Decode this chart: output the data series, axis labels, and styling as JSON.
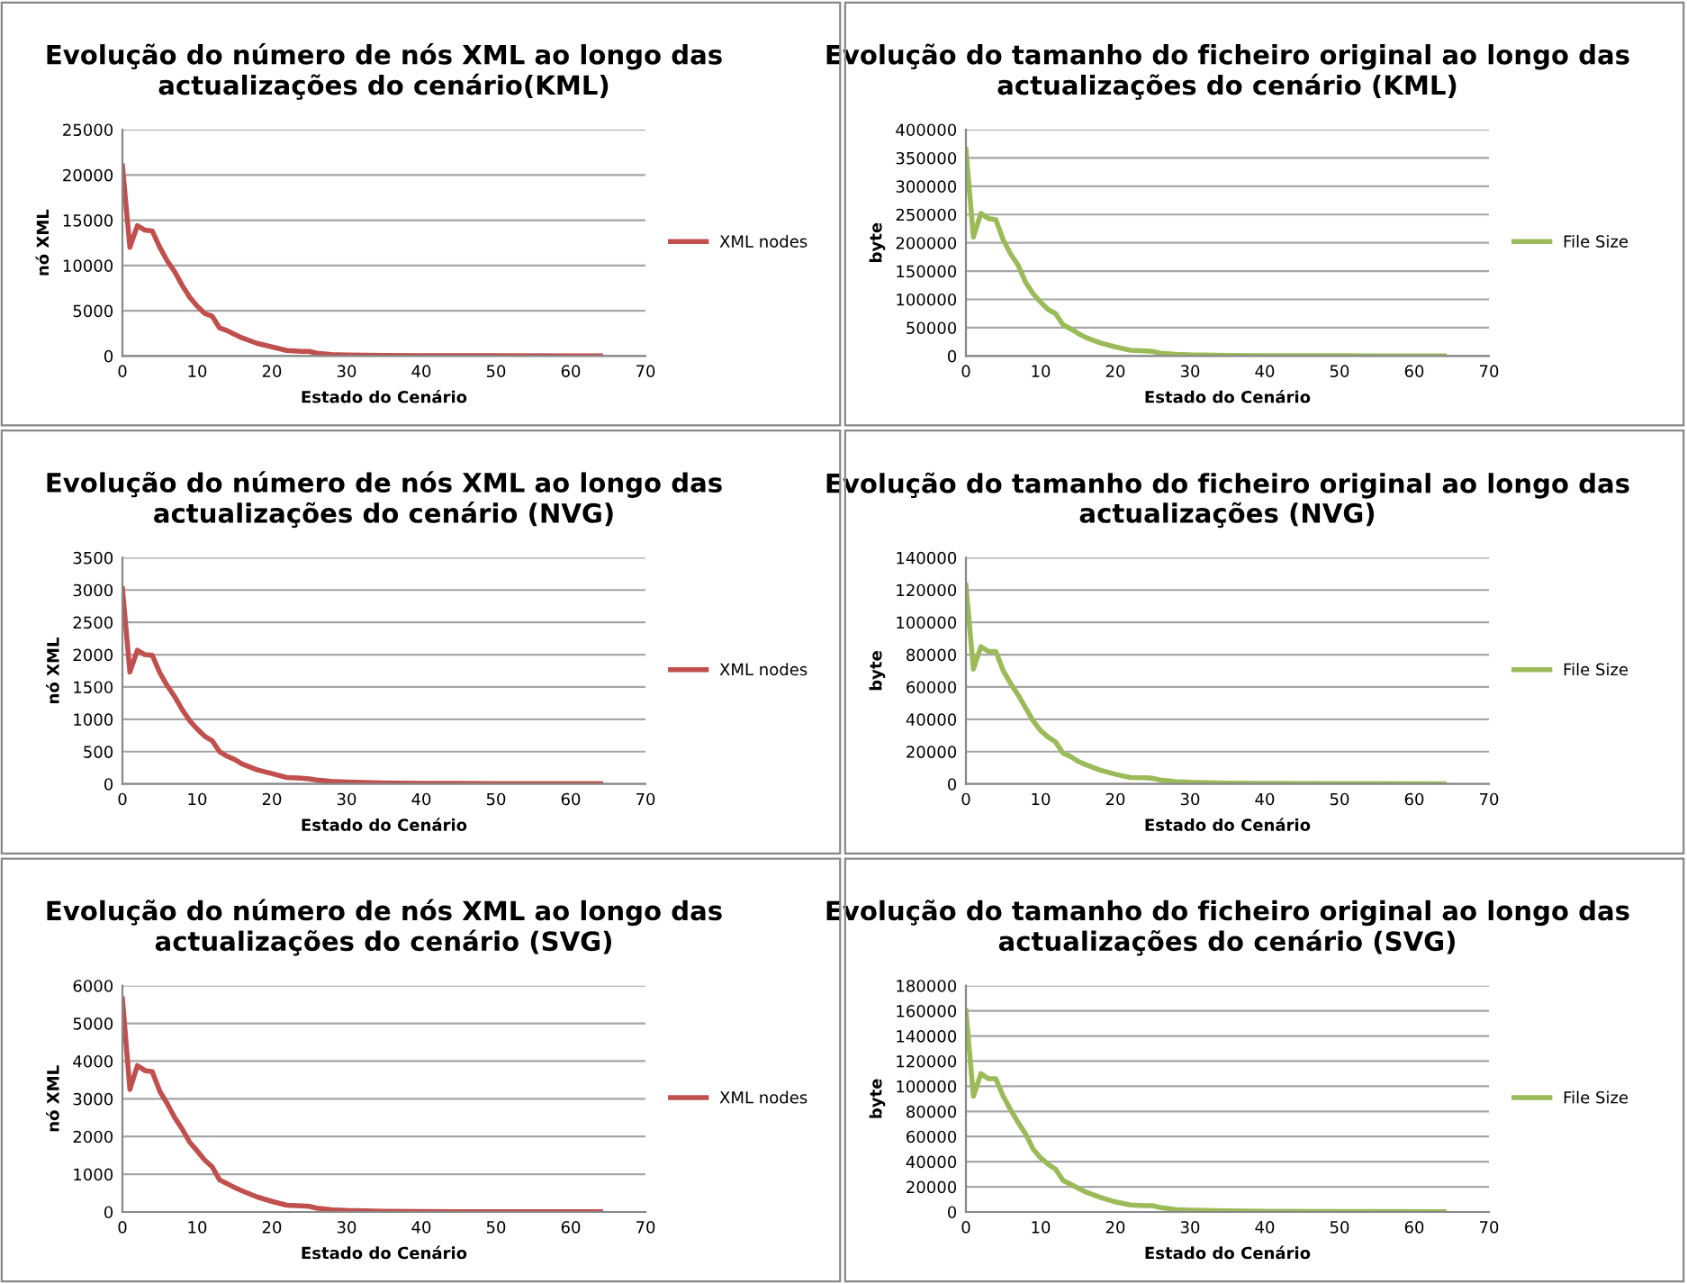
{
  "chart_data": [
    {
      "type": "line",
      "title": "Evolução do número de nós XML ao longo das\nactualizações do cenário(KML)",
      "xlabel": "Estado do Cenário",
      "ylabel": "nó XML",
      "x": [
        0,
        1,
        2,
        3,
        4,
        5,
        6,
        7,
        8,
        9,
        10,
        11,
        12,
        13,
        14,
        15,
        16,
        18,
        20,
        22,
        24,
        25,
        26,
        28,
        30,
        35,
        40,
        50,
        64
      ],
      "xlim": [
        0,
        70
      ],
      "xticks": [
        0,
        10,
        20,
        30,
        40,
        50,
        60,
        70
      ],
      "ylim": [
        0,
        25000
      ],
      "yticks": [
        0,
        5000,
        10000,
        15000,
        20000,
        25000
      ],
      "grid": "y",
      "legend": "right",
      "marker": "none",
      "line_style": "solid",
      "series": [
        {
          "name": "XML nodes",
          "color": "#c0504d",
          "values": [
            21000,
            12000,
            14400,
            13900,
            13800,
            12000,
            10500,
            9300,
            7800,
            6500,
            5500,
            4700,
            4400,
            3100,
            2800,
            2400,
            2000,
            1400,
            1000,
            600,
            500,
            500,
            300,
            150,
            100,
            50,
            30,
            20,
            10
          ]
        }
      ]
    },
    {
      "type": "line",
      "title": "Evolução do tamanho do ficheiro original ao longo das\nactualizações do cenário (KML)",
      "xlabel": "Estado do Cenário",
      "ylabel": "byte",
      "x": [
        0,
        1,
        2,
        3,
        4,
        5,
        6,
        7,
        8,
        9,
        10,
        11,
        12,
        13,
        14,
        15,
        16,
        18,
        20,
        22,
        24,
        25,
        26,
        28,
        30,
        35,
        40,
        50,
        64
      ],
      "xlim": [
        0,
        70
      ],
      "xticks": [
        0,
        10,
        20,
        30,
        40,
        50,
        60,
        70
      ],
      "ylim": [
        0,
        400000
      ],
      "yticks": [
        0,
        50000,
        100000,
        150000,
        200000,
        250000,
        300000,
        350000,
        400000
      ],
      "grid": "y",
      "legend": "right",
      "marker": "none",
      "line_style": "solid",
      "series": [
        {
          "name": "File Size",
          "color": "#9bbb59",
          "values": [
            365000,
            210000,
            252000,
            243000,
            241000,
            205000,
            180000,
            160000,
            130000,
            110000,
            95000,
            82000,
            75000,
            55000,
            48000,
            40000,
            33000,
            23000,
            16000,
            10000,
            9000,
            8000,
            5000,
            3000,
            2000,
            1000,
            500,
            300,
            200
          ]
        }
      ]
    },
    {
      "type": "line",
      "title": "Evolução do número de nós XML ao longo das\nactualizações do cenário (NVG)",
      "xlabel": "Estado do Cenário",
      "ylabel": "nó XML",
      "x": [
        0,
        1,
        2,
        3,
        4,
        5,
        6,
        7,
        8,
        9,
        10,
        11,
        12,
        13,
        14,
        15,
        16,
        18,
        20,
        22,
        24,
        25,
        26,
        28,
        30,
        35,
        40,
        50,
        64
      ],
      "xlim": [
        0,
        70
      ],
      "xticks": [
        0,
        10,
        20,
        30,
        40,
        50,
        60,
        70
      ],
      "ylim": [
        0,
        3500
      ],
      "yticks": [
        0,
        500,
        1000,
        1500,
        2000,
        2500,
        3000,
        3500
      ],
      "grid": "y",
      "legend": "right",
      "marker": "none",
      "line_style": "solid",
      "series": [
        {
          "name": "XML nodes",
          "color": "#c0504d",
          "values": [
            3020,
            1730,
            2070,
            2000,
            1990,
            1720,
            1520,
            1350,
            1150,
            980,
            850,
            740,
            670,
            500,
            430,
            380,
            310,
            220,
            160,
            100,
            90,
            80,
            60,
            40,
            30,
            15,
            10,
            5,
            5
          ]
        }
      ]
    },
    {
      "type": "line",
      "title": "Evolução do tamanho do ficheiro original ao longo das\nactualizações (NVG)",
      "xlabel": "Estado do Cenário",
      "ylabel": "byte",
      "x": [
        0,
        1,
        2,
        3,
        4,
        5,
        6,
        7,
        8,
        9,
        10,
        11,
        12,
        13,
        14,
        15,
        16,
        18,
        20,
        22,
        24,
        25,
        26,
        28,
        30,
        35,
        40,
        50,
        64
      ],
      "xlim": [
        0,
        70
      ],
      "xticks": [
        0,
        10,
        20,
        30,
        40,
        50,
        60,
        70
      ],
      "ylim": [
        0,
        140000
      ],
      "yticks": [
        0,
        20000,
        40000,
        60000,
        80000,
        100000,
        120000,
        140000
      ],
      "grid": "y",
      "legend": "right",
      "marker": "none",
      "line_style": "solid",
      "series": [
        {
          "name": "File Size",
          "color": "#9bbb59",
          "values": [
            123000,
            71000,
            85000,
            82000,
            82000,
            70000,
            62000,
            55000,
            47000,
            39000,
            33000,
            29000,
            26000,
            19000,
            17000,
            14000,
            12000,
            8500,
            6000,
            4000,
            3800,
            3500,
            2500,
            1500,
            1000,
            500,
            300,
            200,
            100
          ]
        }
      ]
    },
    {
      "type": "line",
      "title": "Evolução do número de nós XML ao longo das\nactualizações do cenário (SVG)",
      "xlabel": "Estado do Cenário",
      "ylabel": "nó XML",
      "x": [
        0,
        1,
        2,
        3,
        4,
        5,
        6,
        7,
        8,
        9,
        10,
        11,
        12,
        13,
        14,
        15,
        16,
        18,
        20,
        22,
        24,
        25,
        26,
        28,
        30,
        35,
        40,
        50,
        64
      ],
      "xlim": [
        0,
        70
      ],
      "xticks": [
        0,
        10,
        20,
        30,
        40,
        50,
        60,
        70
      ],
      "ylim": [
        0,
        6000
      ],
      "yticks": [
        0,
        1000,
        2000,
        3000,
        4000,
        5000,
        6000
      ],
      "grid": "y",
      "legend": "right",
      "marker": "none",
      "line_style": "solid",
      "series": [
        {
          "name": "XML nodes",
          "color": "#c0504d",
          "values": [
            5650,
            3250,
            3880,
            3750,
            3720,
            3200,
            2870,
            2500,
            2200,
            1850,
            1620,
            1380,
            1200,
            850,
            750,
            650,
            560,
            400,
            280,
            180,
            160,
            150,
            100,
            60,
            40,
            20,
            10,
            5,
            5
          ]
        }
      ]
    },
    {
      "type": "line",
      "title": "Evolução do tamanho do ficheiro original ao longo das\nactualizações do cenário (SVG)",
      "xlabel": "Estado do Cenário",
      "ylabel": "byte",
      "x": [
        0,
        1,
        2,
        3,
        4,
        5,
        6,
        7,
        8,
        9,
        10,
        11,
        12,
        13,
        14,
        15,
        16,
        18,
        20,
        22,
        24,
        25,
        26,
        28,
        30,
        35,
        40,
        50,
        64
      ],
      "xlim": [
        0,
        70
      ],
      "xticks": [
        0,
        10,
        20,
        30,
        40,
        50,
        60,
        70
      ],
      "ylim": [
        0,
        180000
      ],
      "yticks": [
        0,
        20000,
        40000,
        60000,
        80000,
        100000,
        120000,
        140000,
        160000,
        180000
      ],
      "grid": "y",
      "legend": "right",
      "marker": "none",
      "line_style": "solid",
      "series": [
        {
          "name": "File Size",
          "color": "#9bbb59",
          "values": [
            160000,
            92000,
            110000,
            106000,
            106000,
            92000,
            81000,
            71000,
            62000,
            50000,
            43000,
            38000,
            34000,
            25000,
            22000,
            19000,
            16000,
            11500,
            8000,
            5500,
            5000,
            5000,
            3500,
            2000,
            1500,
            800,
            500,
            300,
            200
          ]
        }
      ]
    }
  ]
}
